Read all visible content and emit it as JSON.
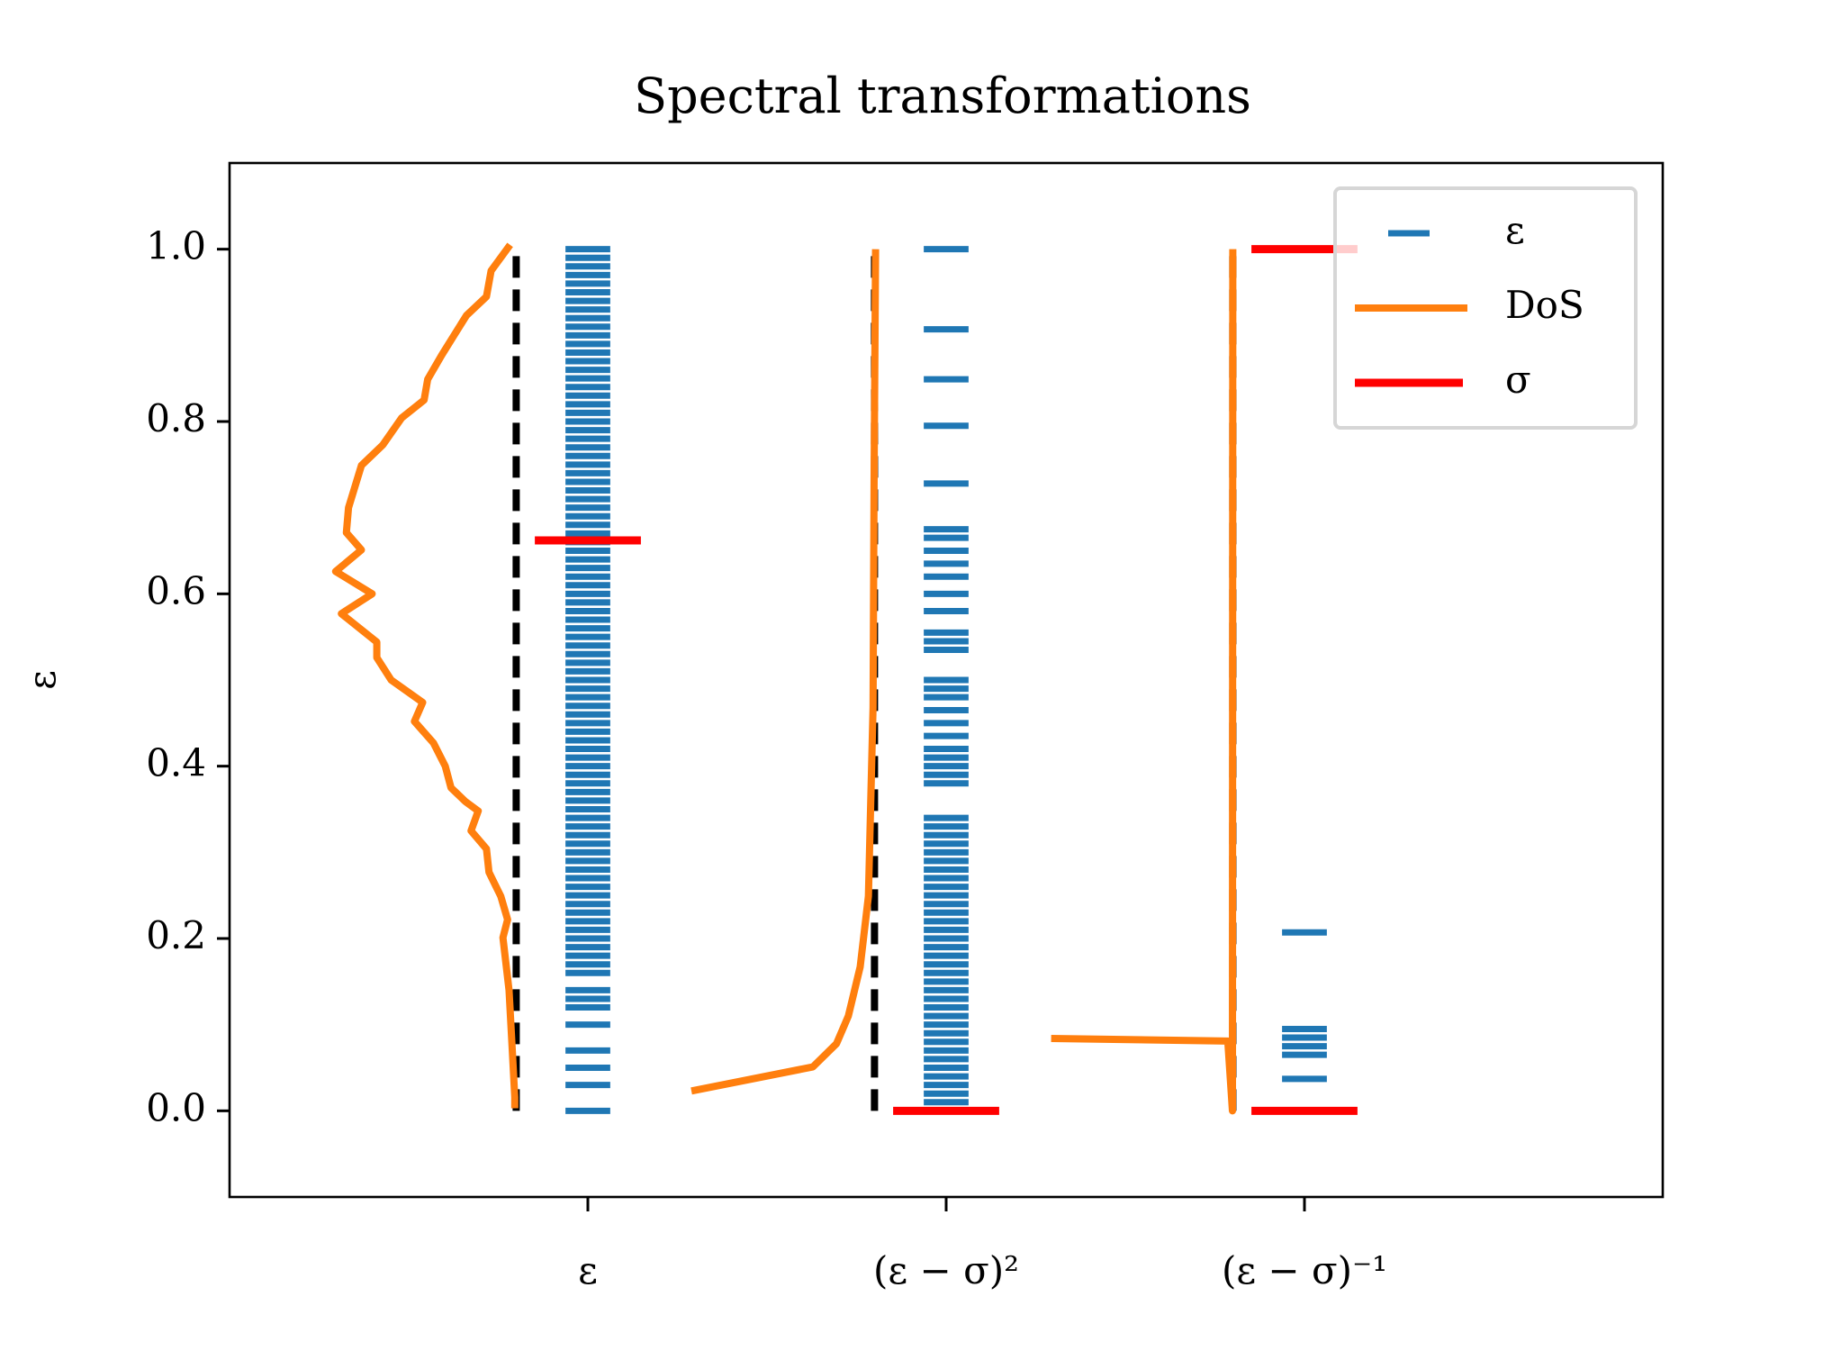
{
  "chart_data": {
    "type": "spectral",
    "title": "Spectral transformations",
    "ylabel": "ε",
    "xlim": [
      -1,
      3
    ],
    "ylim": [
      -0.1,
      1.1
    ],
    "xticks": [
      {
        "value": 0,
        "label": "ε"
      },
      {
        "value": 1,
        "label": "(ε − σ)²"
      },
      {
        "value": 2,
        "label": "(ε − σ)⁻¹"
      }
    ],
    "yticks": [
      {
        "value": 0,
        "label": "0.0"
      },
      {
        "value": 0.2,
        "label": "0.2"
      },
      {
        "value": 0.4,
        "label": "0.4"
      },
      {
        "value": 0.6,
        "label": "0.6"
      },
      {
        "value": 0.8,
        "label": "0.8"
      },
      {
        "value": 1,
        "label": "1.0"
      }
    ],
    "legend": "upper right",
    "vlines": {
      "color": "#000000",
      "x": [
        -0.2,
        0.8,
        1.8
      ],
      "ymin": 0,
      "ymax": 1
    },
    "series": [
      {
        "name": "ε",
        "kind": "dash",
        "color": "#1f77b4",
        "x": [
          0,
          1,
          2
        ],
        "values": [
          [
            0,
            0.03,
            0.05,
            0.07,
            0.1,
            0.12,
            0.13,
            0.14,
            0.16,
            0.17,
            0.18,
            0.19,
            0.2,
            0.21,
            0.22,
            0.23,
            0.24,
            0.25,
            0.26,
            0.27,
            0.28,
            0.29,
            0.3,
            0.31,
            0.32,
            0.33,
            0.34,
            0.35,
            0.36,
            0.37,
            0.38,
            0.39,
            0.4,
            0.41,
            0.42,
            0.43,
            0.44,
            0.45,
            0.46,
            0.47,
            0.48,
            0.49,
            0.5,
            0.51,
            0.52,
            0.53,
            0.54,
            0.55,
            0.56,
            0.57,
            0.58,
            0.59,
            0.6,
            0.61,
            0.62,
            0.63,
            0.64,
            0.65,
            0.66,
            0.67,
            0.68,
            0.69,
            0.7,
            0.71,
            0.72,
            0.73,
            0.74,
            0.75,
            0.76,
            0.77,
            0.78,
            0.79,
            0.8,
            0.81,
            0.82,
            0.83,
            0.84,
            0.85,
            0.86,
            0.87,
            0.88,
            0.89,
            0.9,
            0.91,
            0.92,
            0.93,
            0.94,
            0.95,
            0.96,
            0.97,
            0.98,
            0.99,
            1
          ],
          [
            0,
            0.01,
            0.02,
            0.03,
            0.04,
            0.05,
            0.06,
            0.07,
            0.08,
            0.09,
            0.1,
            0.11,
            0.12,
            0.13,
            0.14,
            0.15,
            0.16,
            0.17,
            0.18,
            0.19,
            0.2,
            0.21,
            0.22,
            0.23,
            0.24,
            0.25,
            0.26,
            0.27,
            0.28,
            0.29,
            0.3,
            0.31,
            0.32,
            0.33,
            0.34,
            0.38,
            0.39,
            0.4,
            0.41,
            0.42,
            0.435,
            0.45,
            0.465,
            0.48,
            0.49,
            0.5,
            0.535,
            0.545,
            0.555,
            0.58,
            0.6,
            0.62,
            0.635,
            0.65,
            0.665,
            0.675,
            0.728,
            0.795,
            0.849,
            0.907,
            1
          ],
          [
            0,
            0.037,
            0.065,
            0.075,
            0.085,
            0.095,
            0.207
          ]
        ]
      },
      {
        "name": "DoS",
        "kind": "line",
        "color": "#ff7f0e",
        "x": [
          -0.204,
          -0.204,
          -0.211,
          -0.22,
          -0.237,
          -0.224,
          -0.243,
          -0.276,
          -0.283,
          -0.326,
          -0.306,
          -0.342,
          -0.382,
          -0.398,
          -0.431,
          -0.484,
          -0.461,
          -0.549,
          -0.589,
          -0.589,
          -0.688,
          -0.602,
          -0.704,
          -0.632,
          -0.674,
          -0.668,
          -0.632,
          -0.572,
          -0.52,
          -0.457,
          -0.447,
          -0.408,
          -0.339,
          -0.283,
          -0.27,
          -0.217,
          null,
          0.289,
          0.628,
          0.694,
          0.727,
          0.76,
          0.783,
          0.796,
          0.799,
          0.803,
          null,
          1.293,
          1.786,
          1.799,
          1.8
        ],
        "values": [
          0.003,
          0.016,
          0.071,
          0.14,
          0.201,
          0.222,
          0.249,
          0.277,
          0.304,
          0.325,
          0.348,
          0.359,
          0.375,
          0.4,
          0.427,
          0.452,
          0.474,
          0.5,
          0.526,
          0.544,
          0.577,
          0.6,
          0.626,
          0.651,
          0.671,
          0.7,
          0.749,
          0.773,
          0.804,
          0.825,
          0.849,
          0.877,
          0.923,
          0.945,
          0.975,
          1.005,
          null,
          0.023,
          0.051,
          0.078,
          0.11,
          0.167,
          0.249,
          0.468,
          0.742,
          1,
          null,
          0.084,
          0.081,
          0,
          1
        ]
      },
      {
        "name": "σ",
        "kind": "dash",
        "color": "#ff0000",
        "x": [
          0,
          1,
          2
        ],
        "values": [
          [
            0.662
          ],
          [
            0
          ],
          [
            1,
            0
          ]
        ]
      }
    ]
  }
}
